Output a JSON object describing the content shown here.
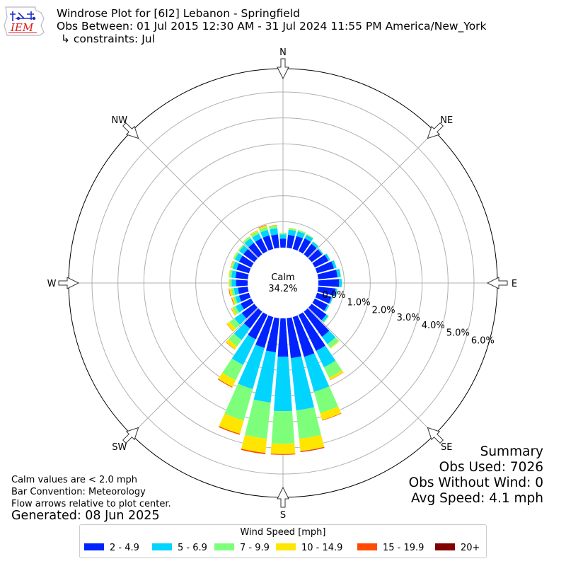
{
  "header": {
    "title": "Windrose Plot for [6I2] Lebanon - Springfield",
    "period": "Obs Between: 01 Jul 2015 12:30 AM - 31 Jul 2024 11:55 PM America/New_York",
    "constraints": "↳ constraints: Jul"
  },
  "logo": {
    "text": "IEM"
  },
  "notes": {
    "calm_def": "Calm values are < 2.0 mph",
    "convention": "Bar Convention: Meteorology",
    "flow": "Flow arrows relative to plot center.",
    "generated": "Generated: 08 Jun 2025"
  },
  "summary": {
    "title": "Summary",
    "obs_used": "Obs Used: 7026",
    "obs_without_wind": "Obs Without Wind: 0",
    "avg_speed": "Avg Speed: 4.1 mph"
  },
  "legend": {
    "title": "Wind Speed [mph]",
    "items": [
      {
        "label": "2 - 4.9",
        "color": "#0022ff"
      },
      {
        "label": "5 - 6.9",
        "color": "#00d4ff"
      },
      {
        "label": "7 - 9.9",
        "color": "#7dff7b"
      },
      {
        "label": "10 - 14.9",
        "color": "#ffe600"
      },
      {
        "label": "15 - 19.9",
        "color": "#ff4a00"
      },
      {
        "label": "20+",
        "color": "#800000"
      }
    ]
  },
  "chart_data": {
    "type": "windrose",
    "calm_label": "Calm",
    "calm_value": "34.2%",
    "directions": [
      {
        "label": "N",
        "deg": 0
      },
      {
        "label": "NE",
        "deg": 45
      },
      {
        "label": "E",
        "deg": 90
      },
      {
        "label": "SE",
        "deg": 135
      },
      {
        "label": "S",
        "deg": 180
      },
      {
        "label": "SW",
        "deg": 225
      },
      {
        "label": "W",
        "deg": 270
      },
      {
        "label": "NW",
        "deg": 315
      }
    ],
    "radial_ticks": [
      "0.0%",
      "1.0%",
      "2.0%",
      "3.0%",
      "4.0%",
      "5.0%",
      "6.0%"
    ],
    "radial_max_percent": 6.9,
    "units": "% of observations (cumulative by speed bin)",
    "bins": [
      "2 - 4.9",
      "5 - 6.9",
      "7 - 9.9",
      "10 - 14.9",
      "15 - 19.9",
      "20+"
    ],
    "sectors": [
      {
        "deg": 0,
        "values": [
          0.35,
          0.16,
          0.05,
          0.01,
          0,
          0
        ]
      },
      {
        "deg": 10,
        "values": [
          0.5,
          0.2,
          0.06,
          0.02,
          0,
          0
        ]
      },
      {
        "deg": 20,
        "values": [
          0.52,
          0.19,
          0.05,
          0.01,
          0,
          0
        ]
      },
      {
        "deg": 30,
        "values": [
          0.55,
          0.15,
          0.03,
          0.01,
          0,
          0
        ]
      },
      {
        "deg": 40,
        "values": [
          0.5,
          0.1,
          0.02,
          0,
          0,
          0
        ]
      },
      {
        "deg": 50,
        "values": [
          0.5,
          0.05,
          0.01,
          0,
          0,
          0
        ]
      },
      {
        "deg": 60,
        "values": [
          0.58,
          0.08,
          0.01,
          0,
          0,
          0
        ]
      },
      {
        "deg": 70,
        "values": [
          0.68,
          0.1,
          0.01,
          0,
          0,
          0
        ]
      },
      {
        "deg": 80,
        "values": [
          0.75,
          0.12,
          0.02,
          0,
          0,
          0
        ]
      },
      {
        "deg": 90,
        "values": [
          0.8,
          0.1,
          0.02,
          0,
          0,
          0
        ]
      },
      {
        "deg": 100,
        "values": [
          0.68,
          0.06,
          0.01,
          0,
          0,
          0
        ]
      },
      {
        "deg": 110,
        "values": [
          0.58,
          0.05,
          0.01,
          0,
          0,
          0
        ]
      },
      {
        "deg": 120,
        "values": [
          0.55,
          0.06,
          0.02,
          0,
          0,
          0
        ]
      },
      {
        "deg": 130,
        "values": [
          0.7,
          0.1,
          0.02,
          0.01,
          0,
          0
        ]
      },
      {
        "deg": 140,
        "values": [
          1.2,
          0.35,
          0.18,
          0.03,
          0,
          0
        ]
      },
      {
        "deg": 150,
        "values": [
          1.55,
          0.7,
          0.45,
          0.09,
          0.01,
          0
        ]
      },
      {
        "deg": 160,
        "values": [
          1.6,
          1.4,
          0.85,
          0.28,
          0.02,
          0
        ]
      },
      {
        "deg": 170,
        "values": [
          1.55,
          2.02,
          1.1,
          0.48,
          0.03,
          0.01
        ]
      },
      {
        "deg": 180,
        "values": [
          1.48,
          2.1,
          1.25,
          0.4,
          0.03,
          0
        ]
      },
      {
        "deg": 190,
        "values": [
          1.32,
          1.95,
          1.4,
          0.55,
          0.05,
          0
        ]
      },
      {
        "deg": 200,
        "values": [
          1.24,
          1.65,
          1.26,
          0.53,
          0.04,
          0
        ]
      },
      {
        "deg": 210,
        "values": [
          1.05,
          1.1,
          0.66,
          0.28,
          0.03,
          0
        ]
      },
      {
        "deg": 220,
        "values": [
          0.8,
          0.55,
          0.3,
          0.15,
          0.01,
          0
        ]
      },
      {
        "deg": 230,
        "values": [
          0.6,
          0.35,
          0.22,
          0.14,
          0.01,
          0
        ]
      },
      {
        "deg": 240,
        "values": [
          0.45,
          0.22,
          0.12,
          0.07,
          0.01,
          0
        ]
      },
      {
        "deg": 250,
        "values": [
          0.4,
          0.15,
          0.08,
          0.06,
          0.02,
          0
        ]
      },
      {
        "deg": 260,
        "values": [
          0.38,
          0.16,
          0.1,
          0.08,
          0.02,
          0
        ]
      },
      {
        "deg": 270,
        "values": [
          0.45,
          0.17,
          0.08,
          0.03,
          0,
          0
        ]
      },
      {
        "deg": 280,
        "values": [
          0.48,
          0.16,
          0.08,
          0.03,
          0,
          0
        ]
      },
      {
        "deg": 290,
        "values": [
          0.5,
          0.15,
          0.06,
          0.03,
          0.01,
          0
        ]
      },
      {
        "deg": 300,
        "values": [
          0.52,
          0.18,
          0.06,
          0.02,
          0,
          0
        ]
      },
      {
        "deg": 310,
        "values": [
          0.52,
          0.2,
          0.05,
          0.01,
          0,
          0
        ]
      },
      {
        "deg": 320,
        "values": [
          0.55,
          0.22,
          0.07,
          0.02,
          0,
          0
        ]
      },
      {
        "deg": 330,
        "values": [
          0.55,
          0.2,
          0.1,
          0.04,
          0.01,
          0
        ]
      },
      {
        "deg": 340,
        "values": [
          0.55,
          0.22,
          0.12,
          0.06,
          0.02,
          0
        ]
      },
      {
        "deg": 350,
        "values": [
          0.52,
          0.24,
          0.1,
          0.02,
          0.01,
          0
        ]
      }
    ]
  }
}
